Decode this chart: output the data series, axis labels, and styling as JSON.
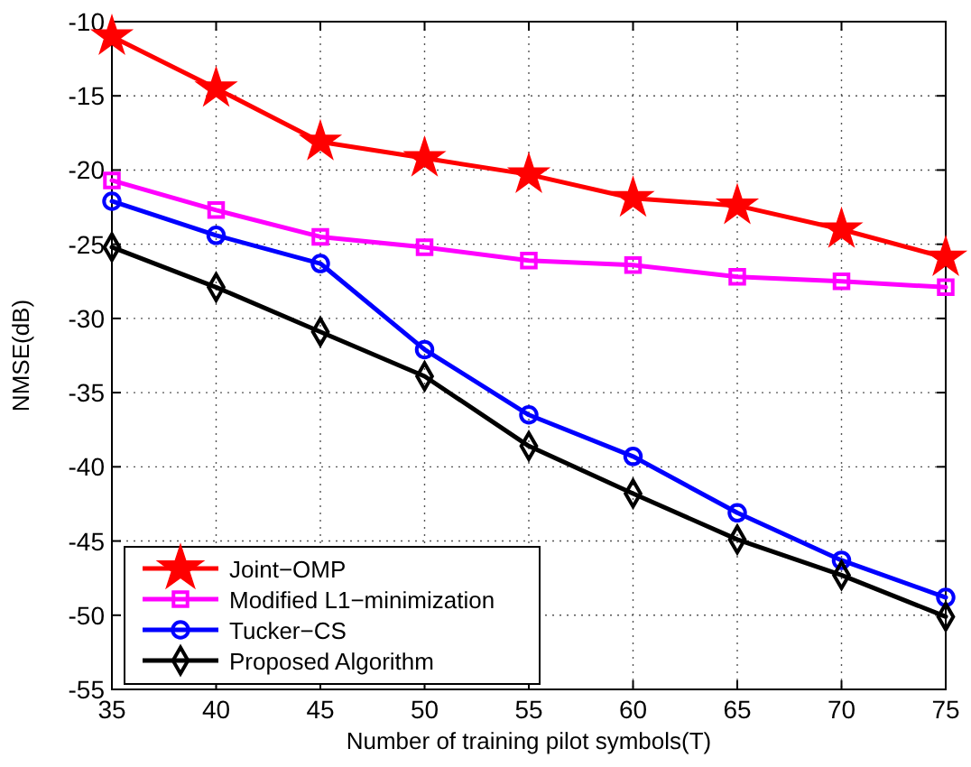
{
  "chart_data": {
    "type": "line",
    "xlabel": "Number of  training pilot symbols(T)",
    "ylabel": "NMSE(dB)",
    "x": [
      35,
      40,
      45,
      50,
      55,
      60,
      65,
      70,
      75
    ],
    "xlim": [
      35,
      75
    ],
    "xticks": [
      35,
      40,
      45,
      50,
      55,
      60,
      65,
      70,
      75
    ],
    "ylim": [
      -55,
      -10
    ],
    "yticks": [
      -55,
      -50,
      -45,
      -40,
      -35,
      -30,
      -25,
      -20,
      -15,
      -10
    ],
    "grid": true,
    "legend": "bottom left",
    "line_style": "solid",
    "series": [
      {
        "name": "Joint−OMP",
        "color": "#ff0000",
        "marker": "star",
        "values": [
          -11,
          -14.5,
          -18.1,
          -19.2,
          -20.3,
          -21.9,
          -22.4,
          -24.0,
          -25.9
        ]
      },
      {
        "name": "Modified L1−minimization",
        "color": "#ff00ff",
        "marker": "square",
        "values": [
          -20.7,
          -22.7,
          -24.5,
          -25.2,
          -26.1,
          -26.4,
          -27.2,
          -27.5,
          -27.9
        ]
      },
      {
        "name": "Tucker−CS",
        "color": "#0000ff",
        "marker": "circle",
        "values": [
          -22.1,
          -24.4,
          -26.3,
          -32.1,
          -36.5,
          -39.3,
          -43.1,
          -46.3,
          -48.8
        ]
      },
      {
        "name": "Proposed Algorithm",
        "color": "#000000",
        "marker": "diamond",
        "values": [
          -25.2,
          -27.9,
          -30.9,
          -33.9,
          -38.6,
          -41.8,
          -44.9,
          -47.3,
          -50.1
        ]
      }
    ]
  }
}
